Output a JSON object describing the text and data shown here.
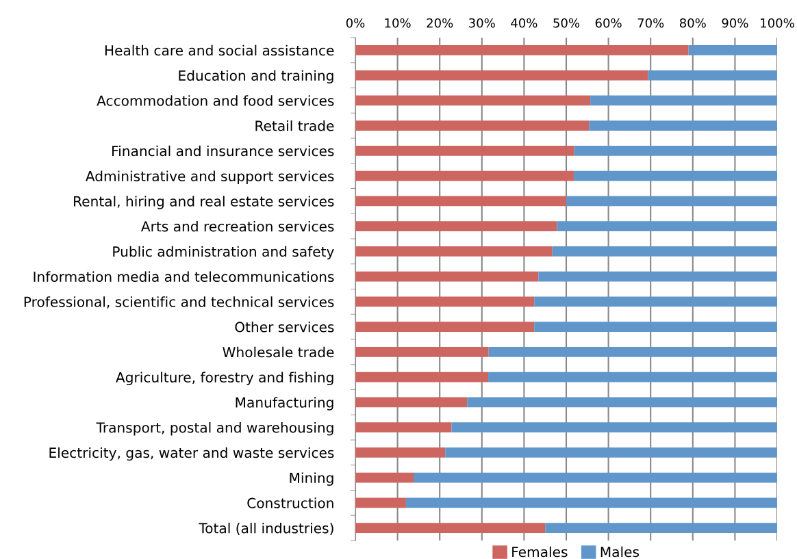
{
  "chart_data": {
    "type": "bar",
    "orientation": "horizontal",
    "stacked": true,
    "categories": [
      "Health care and social assistance",
      "Education and training",
      "Accommodation and food services",
      "Retail trade",
      "Financial and insurance services",
      "Administrative and support services",
      "Rental, hiring and real estate services",
      "Arts and recreation services",
      "Public administration and safety",
      "Information media and telecommunications",
      "Professional, scientific and technical services",
      "Other services",
      "Wholesale trade",
      "Agriculture, forestry and fishing",
      "Manufacturing",
      "Transport, postal and warehousing",
      "Electricity, gas, water and waste services",
      "Mining",
      "Construction",
      "Total (all industries)"
    ],
    "series": [
      {
        "name": "Females",
        "color": "#cd6560",
        "values": [
          79.0,
          69.4,
          55.7,
          55.4,
          51.9,
          51.8,
          50.0,
          47.8,
          46.7,
          43.4,
          42.4,
          42.4,
          31.6,
          31.5,
          26.5,
          22.8,
          21.3,
          13.8,
          12.0,
          45.0
        ]
      },
      {
        "name": "Males",
        "color": "#6196cb",
        "values": [
          21.0,
          30.6,
          44.3,
          44.6,
          48.1,
          48.2,
          50.0,
          52.2,
          53.3,
          56.6,
          57.6,
          57.6,
          68.4,
          68.5,
          73.5,
          77.2,
          78.7,
          86.2,
          88.0,
          55.0
        ]
      }
    ],
    "xlim": [
      0,
      100
    ],
    "xticks": [
      {
        "value": 0,
        "label": "0%"
      },
      {
        "value": 10,
        "label": "10%"
      },
      {
        "value": 20,
        "label": "20%"
      },
      {
        "value": 30,
        "label": "30%"
      },
      {
        "value": 40,
        "label": "40%"
      },
      {
        "value": 50,
        "label": "50%"
      },
      {
        "value": 60,
        "label": "60%"
      },
      {
        "value": 70,
        "label": "70%"
      },
      {
        "value": 80,
        "label": "80%"
      },
      {
        "value": 90,
        "label": "90%"
      },
      {
        "value": 100,
        "label": "100%"
      }
    ],
    "grid": "x",
    "legend": "bottom"
  }
}
